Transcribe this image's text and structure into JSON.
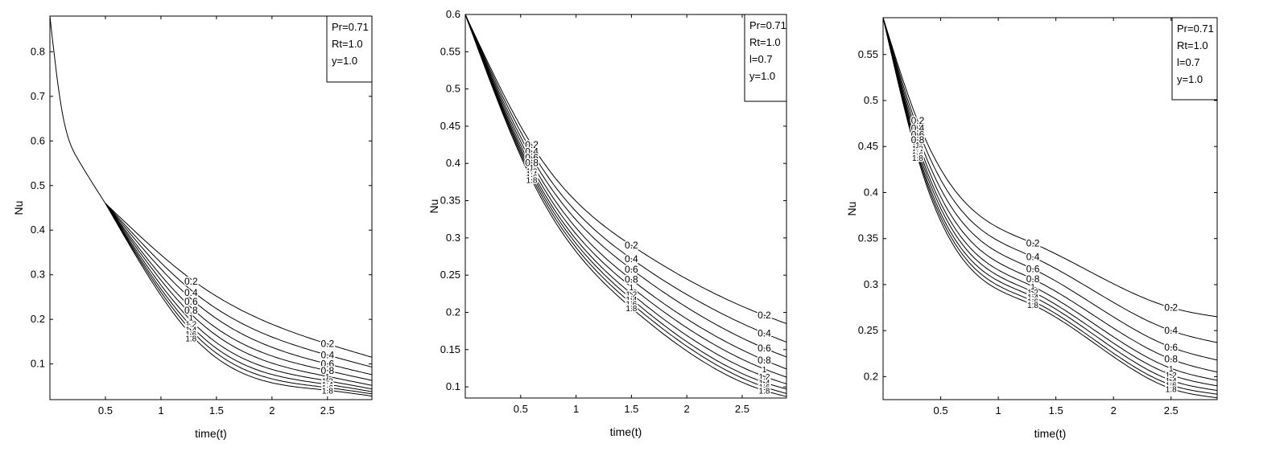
{
  "chart_data": [
    {
      "type": "line",
      "xlabel": "time(t)",
      "ylabel": "Nu",
      "xlim": [
        0,
        2.9
      ],
      "ylim": [
        0.02,
        0.88
      ],
      "xticks": [
        0.5,
        1,
        1.5,
        2,
        2.5
      ],
      "yticks": [
        0.1,
        0.2,
        0.3,
        0.4,
        0.5,
        0.6,
        0.7,
        0.8
      ],
      "legend": [
        "Pr=0.71",
        "Rt=1.0",
        "y=1.0"
      ],
      "legend_position": "top-right",
      "grid": false,
      "start_point": [
        0,
        0.88
      ],
      "merge_point": [
        0.5,
        0.46
      ],
      "series": [
        {
          "label": "0.2",
          "x": [
            0.5,
            1.3,
            2.5,
            2.9
          ],
          "y": [
            0.46,
            0.285,
            0.145,
            0.115
          ]
        },
        {
          "label": "0.4",
          "x": [
            0.5,
            1.3,
            2.5,
            2.9
          ],
          "y": [
            0.46,
            0.26,
            0.12,
            0.093
          ]
        },
        {
          "label": "0.6",
          "x": [
            0.5,
            1.3,
            2.5,
            2.9
          ],
          "y": [
            0.46,
            0.24,
            0.1,
            0.076
          ]
        },
        {
          "label": "0.8",
          "x": [
            0.5,
            1.3,
            2.5,
            2.9
          ],
          "y": [
            0.46,
            0.22,
            0.085,
            0.063
          ]
        },
        {
          "label": "1",
          "x": [
            0.5,
            1.3,
            2.5,
            2.9
          ],
          "y": [
            0.46,
            0.205,
            0.072,
            0.052
          ]
        },
        {
          "label": "1.2",
          "x": [
            0.5,
            1.3,
            2.5,
            2.9
          ],
          "y": [
            0.46,
            0.19,
            0.062,
            0.044
          ]
        },
        {
          "label": "1.4",
          "x": [
            0.5,
            1.3,
            2.5,
            2.9
          ],
          "y": [
            0.46,
            0.178,
            0.054,
            0.038
          ]
        },
        {
          "label": "1.6",
          "x": [
            0.5,
            1.3,
            2.5,
            2.9
          ],
          "y": [
            0.46,
            0.168,
            0.047,
            0.033
          ]
        },
        {
          "label": "1.8",
          "x": [
            0.5,
            1.3,
            2.5,
            2.9
          ],
          "y": [
            0.46,
            0.158,
            0.041,
            0.028
          ]
        }
      ]
    },
    {
      "type": "line",
      "xlabel": "time(t)",
      "ylabel": "Nu",
      "xlim": [
        0,
        2.9
      ],
      "ylim": [
        0.085,
        0.6
      ],
      "xticks": [
        0.5,
        1,
        1.5,
        2,
        2.5
      ],
      "yticks": [
        0.1,
        0.15,
        0.2,
        0.25,
        0.3,
        0.35,
        0.4,
        0.45,
        0.5,
        0.55,
        0.6
      ],
      "legend": [
        "Pr=0.71",
        "Rt=1.0",
        "l=0.7",
        "y=1.0"
      ],
      "legend_position": "top-right",
      "grid": false,
      "start_point": [
        0,
        0.6
      ],
      "series": [
        {
          "label": "0.2",
          "x": [
            0,
            0.6,
            1.5,
            2.7,
            2.9
          ],
          "y": [
            0.6,
            0.425,
            0.29,
            0.196,
            0.185
          ]
        },
        {
          "label": "0.4",
          "x": [
            0,
            0.6,
            1.5,
            2.7,
            2.9
          ],
          "y": [
            0.6,
            0.416,
            0.272,
            0.172,
            0.16
          ]
        },
        {
          "label": "0.6",
          "x": [
            0,
            0.6,
            1.5,
            2.7,
            2.9
          ],
          "y": [
            0.6,
            0.408,
            0.258,
            0.152,
            0.14
          ]
        },
        {
          "label": "0.8",
          "x": [
            0,
            0.6,
            1.5,
            2.7,
            2.9
          ],
          "y": [
            0.6,
            0.401,
            0.244,
            0.136,
            0.124
          ]
        },
        {
          "label": "1",
          "x": [
            0,
            0.6,
            1.5,
            2.7,
            2.9
          ],
          "y": [
            0.6,
            0.395,
            0.234,
            0.124,
            0.113
          ]
        },
        {
          "label": "1.2",
          "x": [
            0,
            0.6,
            1.5,
            2.7,
            2.9
          ],
          "y": [
            0.6,
            0.39,
            0.225,
            0.114,
            0.104
          ]
        },
        {
          "label": "1.4",
          "x": [
            0,
            0.6,
            1.5,
            2.7,
            2.9
          ],
          "y": [
            0.6,
            0.386,
            0.218,
            0.106,
            0.097
          ]
        },
        {
          "label": "1.6",
          "x": [
            0,
            0.6,
            1.5,
            2.7,
            2.9
          ],
          "y": [
            0.6,
            0.382,
            0.212,
            0.1,
            0.091
          ]
        },
        {
          "label": "1.8",
          "x": [
            0,
            0.6,
            1.5,
            2.7,
            2.9
          ],
          "y": [
            0.6,
            0.378,
            0.206,
            0.095,
            0.087
          ]
        }
      ]
    },
    {
      "type": "line",
      "xlabel": "time(t)",
      "ylabel": "Nu",
      "xlim": [
        0,
        2.9
      ],
      "ylim": [
        0.175,
        0.59
      ],
      "xticks": [
        0.5,
        1,
        1.5,
        2,
        2.5
      ],
      "yticks": [
        0.2,
        0.25,
        0.3,
        0.35,
        0.4,
        0.45,
        0.5,
        0.55
      ],
      "legend": [
        "Pr=0.71",
        "Rt=1.0",
        "l=0.7",
        "y=1.0"
      ],
      "legend_position": "top-right",
      "grid": false,
      "start_point": [
        0,
        0.59
      ],
      "series": [
        {
          "label": "0.2",
          "x": [
            0,
            0.3,
            1.3,
            2.5,
            2.9
          ],
          "y": [
            0.59,
            0.478,
            0.345,
            0.275,
            0.265
          ]
        },
        {
          "label": "0.4",
          "x": [
            0,
            0.3,
            1.3,
            2.5,
            2.9
          ],
          "y": [
            0.59,
            0.47,
            0.33,
            0.25,
            0.237
          ]
        },
        {
          "label": "0.6",
          "x": [
            0,
            0.3,
            1.3,
            2.5,
            2.9
          ],
          "y": [
            0.59,
            0.463,
            0.317,
            0.232,
            0.218
          ]
        },
        {
          "label": "0.8",
          "x": [
            0,
            0.3,
            1.3,
            2.5,
            2.9
          ],
          "y": [
            0.59,
            0.457,
            0.306,
            0.219,
            0.205
          ]
        },
        {
          "label": "1",
          "x": [
            0,
            0.3,
            1.3,
            2.5,
            2.9
          ],
          "y": [
            0.59,
            0.452,
            0.298,
            0.209,
            0.196
          ]
        },
        {
          "label": "1.2",
          "x": [
            0,
            0.3,
            1.3,
            2.5,
            2.9
          ],
          "y": [
            0.59,
            0.448,
            0.292,
            0.202,
            0.19
          ]
        },
        {
          "label": "1.4",
          "x": [
            0,
            0.3,
            1.3,
            2.5,
            2.9
          ],
          "y": [
            0.59,
            0.444,
            0.287,
            0.196,
            0.185
          ]
        },
        {
          "label": "1.6",
          "x": [
            0,
            0.3,
            1.3,
            2.5,
            2.9
          ],
          "y": [
            0.59,
            0.441,
            0.282,
            0.191,
            0.181
          ]
        },
        {
          "label": "1.8",
          "x": [
            0,
            0.3,
            1.3,
            2.5,
            2.9
          ],
          "y": [
            0.59,
            0.438,
            0.278,
            0.187,
            0.177
          ]
        }
      ]
    }
  ]
}
